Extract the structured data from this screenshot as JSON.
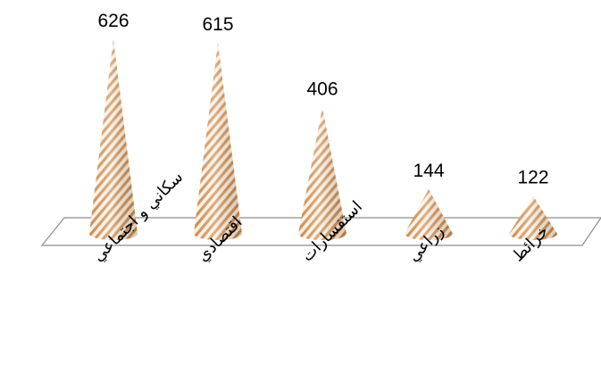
{
  "chart_data": {
    "type": "bar",
    "title": "",
    "xlabel": "",
    "ylabel": "",
    "ylim": [
      0,
      626
    ],
    "categories": [
      "سكاني و اجتماعي",
      "اقتصادي",
      "استفسارات",
      "زراعي",
      "خرائط"
    ],
    "values": [
      626,
      615,
      406,
      144,
      122
    ],
    "data_labels": [
      "626",
      "615",
      "406",
      "144",
      "122"
    ],
    "grid": false,
    "legend": "none",
    "colors": {
      "stripe_dark": "#c8864a",
      "stripe_light": "#fbeedd",
      "floor_stroke": "#8c8c8c"
    }
  }
}
